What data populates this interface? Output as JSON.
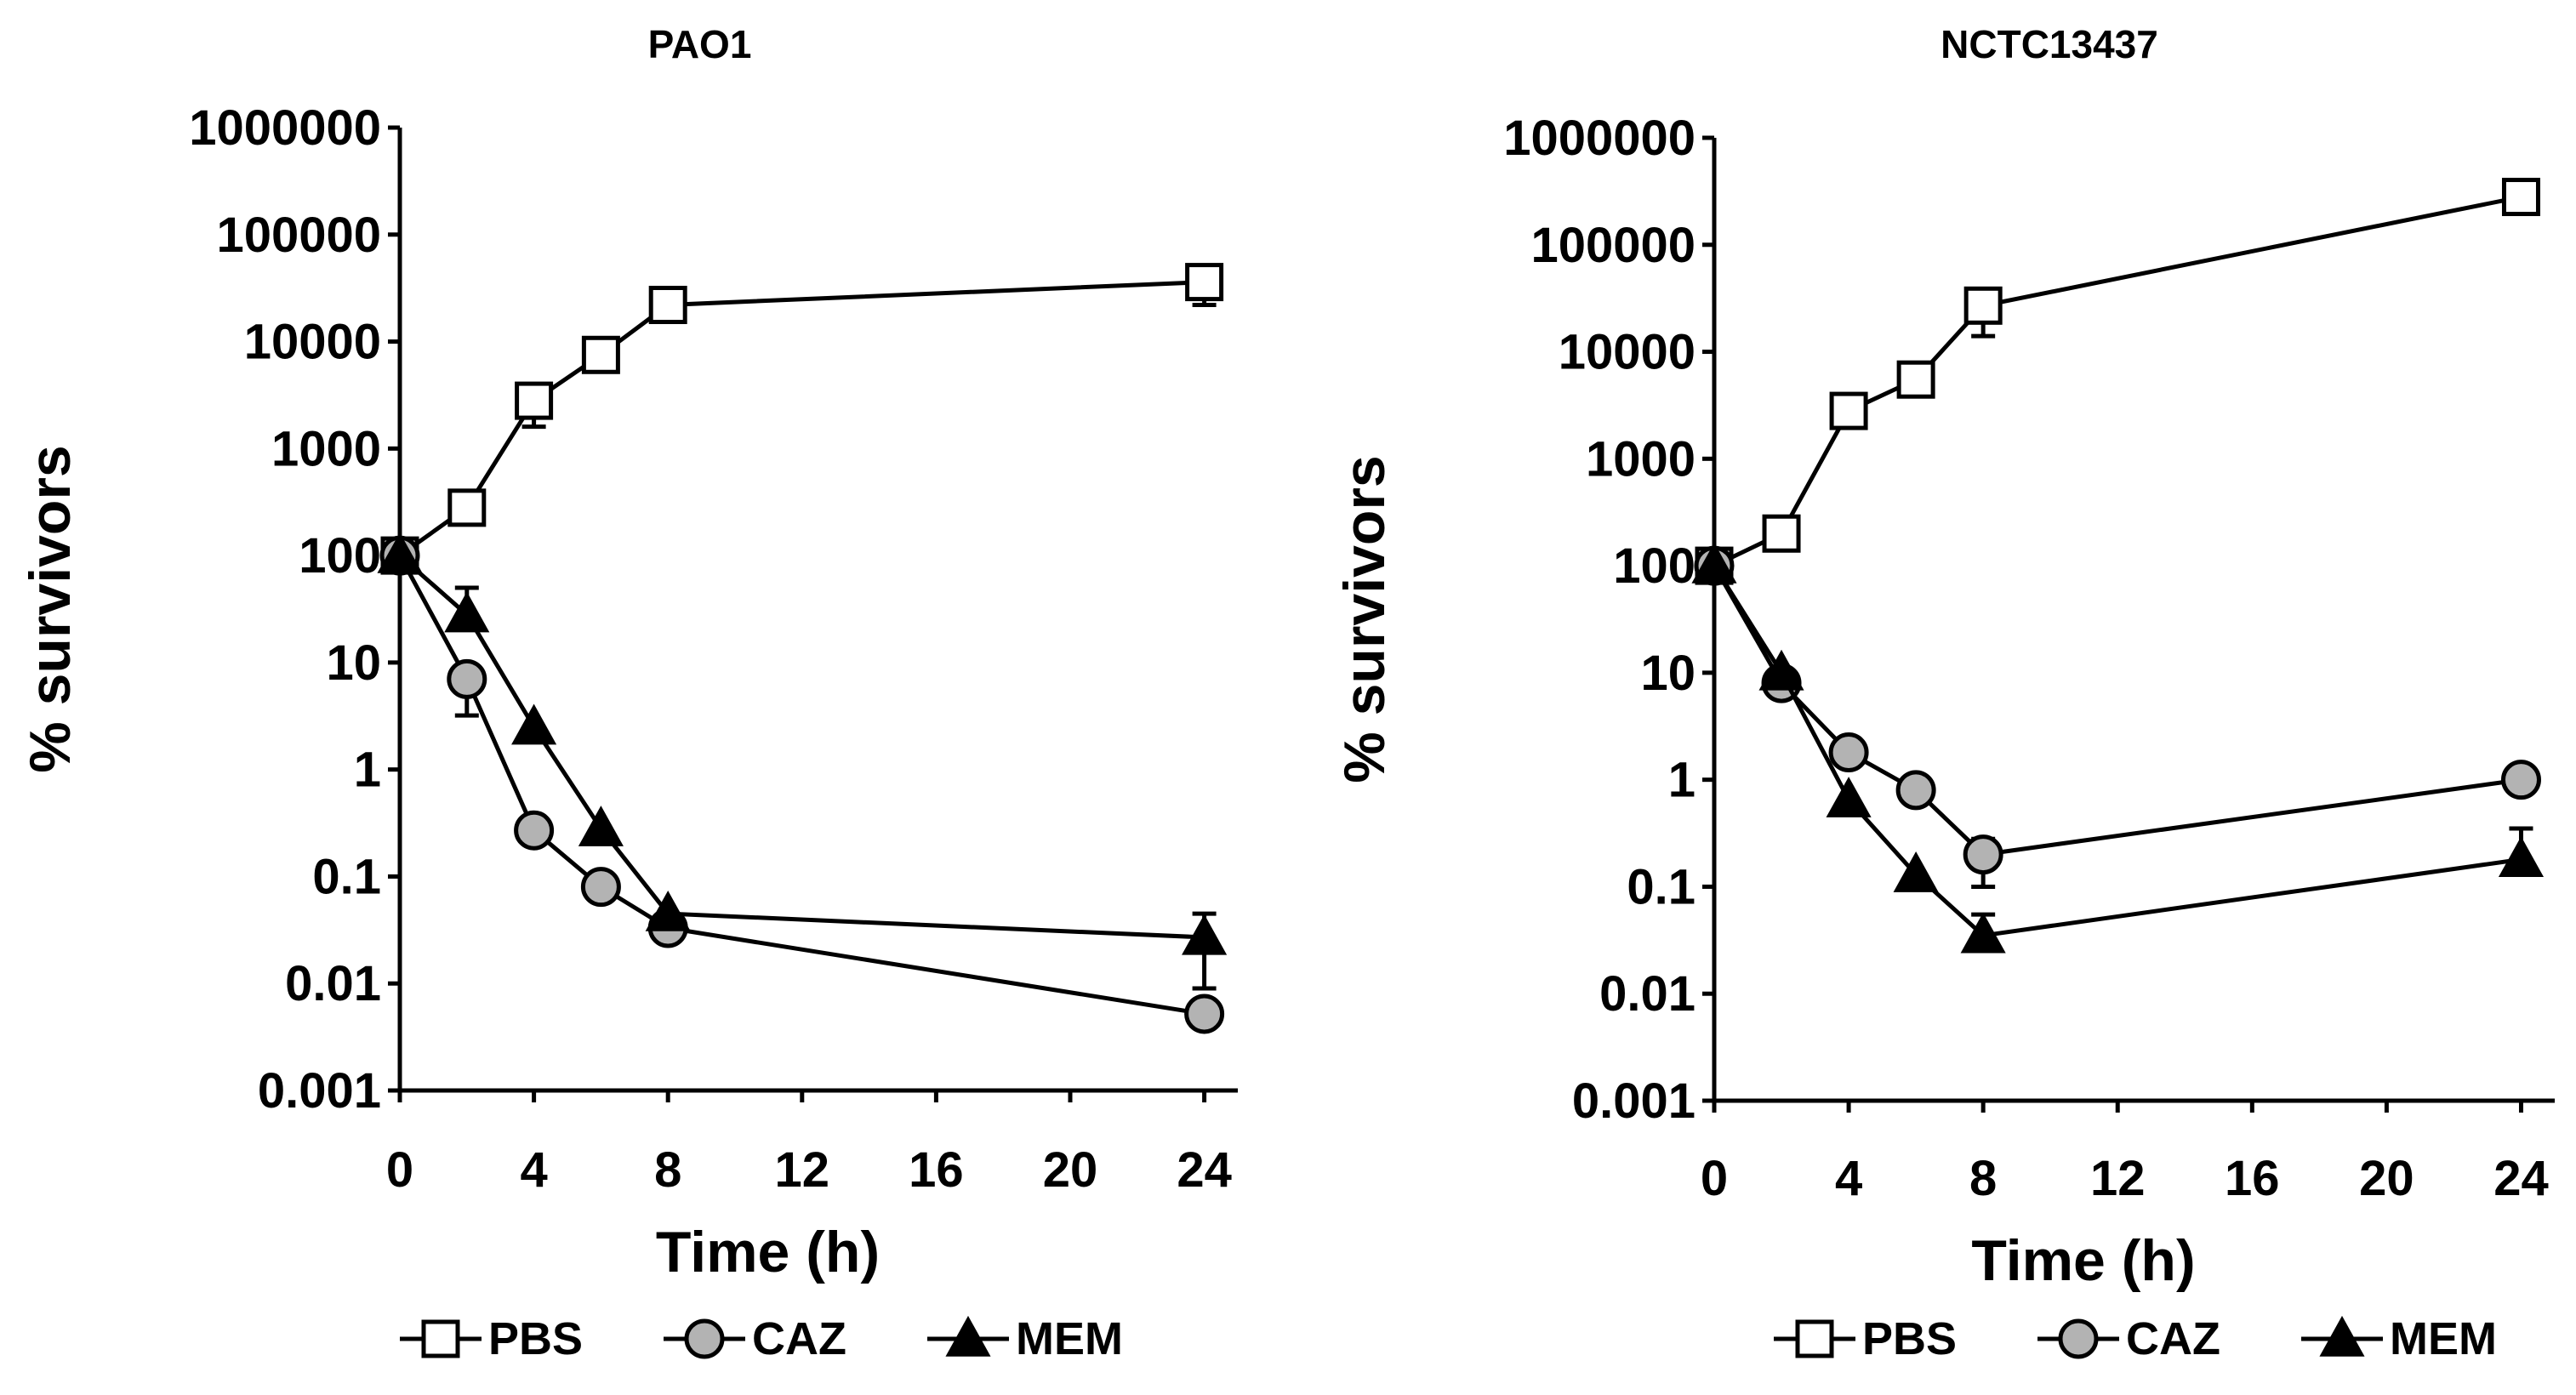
{
  "chart_data": [
    {
      "type": "line",
      "title": "PAO1",
      "xlabel": "Time (h)",
      "ylabel": "% survivors",
      "yscale": "log",
      "ylim": [
        0.001,
        1000000
      ],
      "xlim": [
        0,
        25
      ],
      "xticks": [
        0,
        4,
        8,
        12,
        16,
        20,
        24
      ],
      "yticks": [
        {
          "value": 0.001,
          "label": "0.001"
        },
        {
          "value": 0.01,
          "label": "0.01"
        },
        {
          "value": 0.1,
          "label": "0.1"
        },
        {
          "value": 1,
          "label": "1"
        },
        {
          "value": 10,
          "label": "10"
        },
        {
          "value": 100,
          "label": "100"
        },
        {
          "value": 1000,
          "label": "1000"
        },
        {
          "value": 10000,
          "label": "10000"
        },
        {
          "value": 100000,
          "label": "100000"
        },
        {
          "value": 1000000,
          "label": "1000000"
        }
      ],
      "series": [
        {
          "name": "PBS",
          "marker": "square",
          "x": [
            0,
            2,
            4,
            6,
            8,
            24
          ],
          "values": [
            100,
            280,
            2800,
            7500,
            22000,
            36000
          ],
          "err_low": [
            null,
            null,
            1600,
            null,
            null,
            22000
          ],
          "err_high": [
            null,
            null,
            null,
            null,
            null,
            null
          ]
        },
        {
          "name": "CAZ",
          "marker": "circle",
          "x": [
            0,
            2,
            4,
            6,
            8,
            24
          ],
          "values": [
            100,
            7,
            0.27,
            0.08,
            0.033,
            0.0052
          ],
          "err_low": [
            null,
            3.2,
            null,
            null,
            null,
            null
          ],
          "err_high": [
            null,
            null,
            null,
            null,
            null,
            null
          ]
        },
        {
          "name": "MEM",
          "marker": "triangle",
          "x": [
            0,
            2,
            4,
            6,
            8,
            24
          ],
          "values": [
            100,
            28,
            2.5,
            0.28,
            0.045,
            0.027
          ],
          "err_low": [
            null,
            null,
            null,
            null,
            null,
            0.009
          ],
          "err_high": [
            null,
            50,
            null,
            null,
            null,
            0.045
          ]
        }
      ],
      "legend": [
        "PBS",
        "CAZ",
        "MEM"
      ],
      "legend_position": "bottom"
    },
    {
      "type": "line",
      "title": "NCTC13437",
      "xlabel": "Time (h)",
      "ylabel": "% survivors",
      "yscale": "log",
      "ylim": [
        0.001,
        1000000
      ],
      "xlim": [
        0,
        25
      ],
      "xticks": [
        0,
        4,
        8,
        12,
        16,
        20,
        24
      ],
      "yticks": [
        {
          "value": 0.001,
          "label": "0.001"
        },
        {
          "value": 0.01,
          "label": "0.01"
        },
        {
          "value": 0.1,
          "label": "0.1"
        },
        {
          "value": 1,
          "label": "1"
        },
        {
          "value": 10,
          "label": "10"
        },
        {
          "value": 100,
          "label": "100"
        },
        {
          "value": 1000,
          "label": "1000"
        },
        {
          "value": 10000,
          "label": "10000"
        },
        {
          "value": 100000,
          "label": "100000"
        },
        {
          "value": 1000000,
          "label": "1000000"
        }
      ],
      "series": [
        {
          "name": "PBS",
          "marker": "square",
          "x": [
            0,
            2,
            4,
            6,
            8,
            24
          ],
          "values": [
            100,
            200,
            2800,
            5500,
            27000,
            280000
          ],
          "err_low": [
            null,
            null,
            null,
            null,
            14000,
            null
          ],
          "err_high": [
            null,
            null,
            null,
            null,
            null,
            null
          ]
        },
        {
          "name": "CAZ",
          "marker": "circle",
          "x": [
            0,
            2,
            4,
            6,
            8,
            24
          ],
          "values": [
            100,
            8,
            1.8,
            0.8,
            0.2,
            1.0
          ],
          "err_low": [
            null,
            null,
            null,
            null,
            0.1,
            null
          ],
          "err_high": [
            null,
            null,
            null,
            null,
            0.28,
            null
          ]
        },
        {
          "name": "MEM",
          "marker": "triangle",
          "x": [
            0,
            2,
            4,
            6,
            8,
            24
          ],
          "values": [
            100,
            10,
            0.65,
            0.13,
            0.035,
            0.18
          ],
          "err_low": [
            null,
            null,
            null,
            null,
            null,
            null
          ],
          "err_high": [
            null,
            null,
            null,
            null,
            0.055,
            0.35
          ]
        }
      ],
      "legend": [
        "PBS",
        "CAZ",
        "MEM"
      ],
      "legend_position": "bottom"
    }
  ],
  "colors": {
    "axis": "#000000",
    "PBS_fill": "#ffffff",
    "CAZ_fill": "#b3b3b3",
    "MEM_fill": "#000000"
  }
}
